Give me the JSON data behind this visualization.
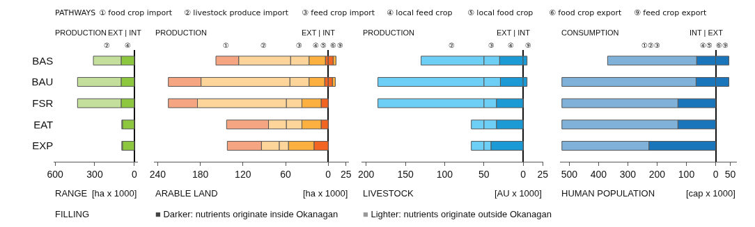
{
  "chart_data": [
    {
      "type": "bar",
      "orientation": "horizontal",
      "stacked": true,
      "title": "PRODUCTION",
      "xlabel": "RANGE",
      "tick_labels": "xy",
      "annotations": [
        "EXT | INT",
        "[ha x 1000]",
        "PATHWAYS",
        "① food crop import",
        "② livestock produce import",
        "③ feed crop import",
        "④ local feed crop",
        "⑤ local food crop",
        "⑥ food crop export",
        "⑨ feed crop export"
      ],
      "categories": [
        "BAS",
        "BAU",
        "FSR",
        "EAT",
        "EXP"
      ],
      "series": [
        {
          "name": "④",
          "color": "#8dc63f",
          "values": [
            -100,
            -100,
            -100,
            -90,
            -90
          ]
        },
        {
          "name": "②",
          "color": "#c4df9b",
          "values": [
            -210,
            -330,
            -330,
            -5,
            -5
          ]
        }
      ],
      "xlim": [
        -610,
        26
      ],
      "xticks": [
        {
          "value": -600,
          "label": "600"
        },
        {
          "value": -300,
          "label": "300"
        },
        0
      ]
    },
    {
      "type": "bar",
      "orientation": "horizontal",
      "stacked": true,
      "title": "PRODUCTION",
      "xlabel": "ARABLE LAND",
      "tick_labels": "x",
      "annotations": [
        "EXT | INT",
        "[ha x 1000]",
        "FILLING",
        "■ Darker: nutrients originate inside Okanagan",
        "■ Lighter: nutrients originate outside Okanagan"
      ],
      "categories": [
        "BAS",
        "BAU",
        "FSR",
        "EAT",
        "EXP"
      ],
      "series": [
        {
          "name": "⑤",
          "color": "#f26522",
          "values": [
            -4,
            -5,
            -10,
            -10,
            -20
          ]
        },
        {
          "name": "④",
          "color": "#fbb040",
          "values": [
            -23,
            -22,
            -27,
            -27,
            -36
          ]
        },
        {
          "name": "③",
          "color": "#fdd59b",
          "values": [
            -26,
            -27,
            -22,
            -22,
            -13
          ]
        },
        {
          "name": "②",
          "color": "#fdd59b",
          "values": [
            -73,
            -125,
            -125,
            -25,
            -25
          ]
        },
        {
          "name": "①",
          "color": "#f6a583",
          "values": [
            -32,
            -46,
            -41,
            -59,
            -48
          ]
        },
        {
          "name": "⑥",
          "color": "#f26522",
          "values": [
            7,
            6,
            null,
            null,
            null
          ]
        },
        {
          "name": "⑨",
          "color": "#fbb040",
          "values": [
            4,
            4,
            null,
            null,
            null
          ]
        }
      ],
      "xlim": [
        -245,
        29
      ],
      "xticks": [
        {
          "value": -240,
          "label": "240"
        },
        {
          "value": -180,
          "label": "180"
        },
        {
          "value": -120,
          "label": "120"
        },
        {
          "value": -60,
          "label": "60"
        },
        0,
        25
      ]
    },
    {
      "type": "bar",
      "orientation": "horizontal",
      "stacked": true,
      "title": "PRODUCTION",
      "xlabel": "LIVESTOCK",
      "tick_labels": "x",
      "annotations": [
        "EXT | INT",
        "[AU x 1000]"
      ],
      "categories": [
        "BAS",
        "BAU",
        "FSR",
        "EAT",
        "EXP"
      ],
      "series": [
        {
          "name": "④",
          "color": "#1c9ad6",
          "values": [
            -30,
            -29,
            -34,
            -34,
            -41
          ]
        },
        {
          "name": "③",
          "color": "#6dcff6",
          "values": [
            -20,
            -21,
            -16,
            -16,
            -9
          ]
        },
        {
          "name": "②",
          "color": "#6dcff6",
          "values": [
            -80,
            -135,
            -135,
            -16,
            -16
          ]
        },
        {
          "name": "⑨",
          "color": "#1c9ad6",
          "values": [
            5,
            5,
            null,
            null,
            null
          ]
        }
      ],
      "xlim": [
        -206,
        26
      ],
      "xticks": [
        {
          "value": -200,
          "label": "200"
        },
        {
          "value": -150,
          "label": "150"
        },
        {
          "value": -100,
          "label": "100"
        },
        {
          "value": -50,
          "label": "50"
        },
        0,
        25
      ]
    },
    {
      "type": "bar",
      "orientation": "horizontal",
      "stacked": true,
      "title": "CONSUMPTION",
      "xlabel": "HUMAN POPULATION",
      "tick_labels": "x",
      "annotations": [
        "INT | EXT",
        "[cap x 1000]"
      ],
      "categories": [
        "BAS",
        "BAU",
        "FSR",
        "EAT",
        "EXP"
      ],
      "series": [
        {
          "name": "④⑤",
          "color": "#1b75bb",
          "values": [
            -65,
            -67,
            -129,
            -129,
            -228
          ]
        },
        {
          "name": "①②③",
          "color": "#7fb1d9",
          "values": [
            -304,
            -458,
            -396,
            -396,
            -297
          ]
        },
        {
          "name": "⑥⑨",
          "color": "#1b75bb",
          "values": [
            45,
            45,
            null,
            null,
            null
          ]
        }
      ],
      "xlim": [
        -532,
        72
      ],
      "xticks": [
        {
          "value": -500,
          "label": "500"
        },
        {
          "value": -400,
          "label": "400"
        },
        {
          "value": -300,
          "label": "300"
        },
        {
          "value": -200,
          "label": "200"
        },
        {
          "value": -100,
          "label": "100"
        },
        0,
        50
      ]
    }
  ]
}
